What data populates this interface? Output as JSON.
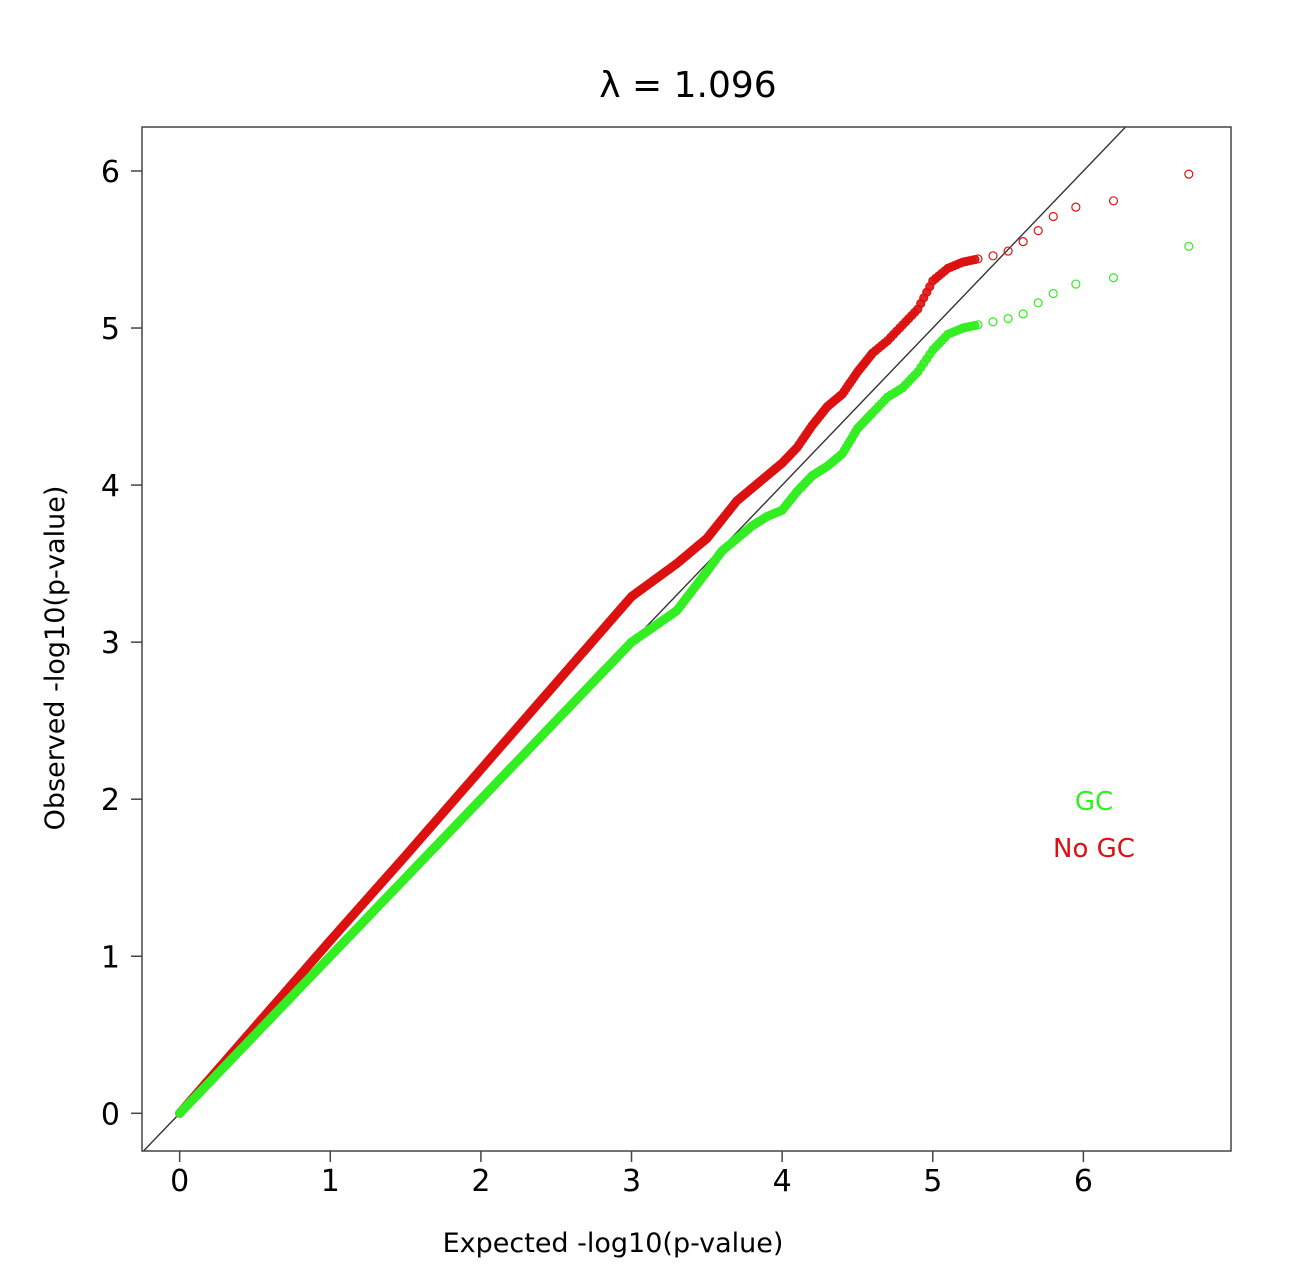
{
  "chart_data": {
    "type": "scatter",
    "title": "λ = 1.096",
    "xlabel": "Expected -log10(p-value)",
    "ylabel": "Observed -log10(p-value)",
    "xlim": [
      -0.25,
      6.98
    ],
    "ylim": [
      -0.24,
      6.28
    ],
    "x_ticks": [
      0,
      1,
      2,
      3,
      4,
      5,
      6
    ],
    "y_ticks": [
      0,
      1,
      2,
      3,
      4,
      5,
      6
    ],
    "x_tick_labels": [
      "0",
      "1",
      "2",
      "3",
      "4",
      "5",
      "6"
    ],
    "y_tick_labels": [
      "0",
      "1",
      "2",
      "3",
      "4",
      "5",
      "6"
    ],
    "reference_line": {
      "slope": 1,
      "intercept": 0,
      "color": "#333333"
    },
    "legend_position": "right",
    "legend": [
      {
        "label": "GC",
        "color": "#33ee22"
      },
      {
        "label": "No GC",
        "color": "#dd1111"
      }
    ],
    "series": [
      {
        "name": "No GC",
        "color": "#dd1111",
        "x": [
          0,
          0.3,
          0.6,
          1.0,
          1.5,
          2.0,
          2.5,
          3.0,
          3.3,
          3.5,
          3.6,
          3.7,
          3.8,
          3.9,
          4.0,
          4.1,
          4.2,
          4.3,
          4.4,
          4.5,
          4.6,
          4.7,
          4.8,
          4.9,
          5.0,
          5.1,
          5.2,
          5.3,
          5.4,
          5.5,
          5.6,
          5.7,
          5.8,
          5.95,
          6.2,
          6.7
        ],
        "y": [
          0,
          0.33,
          0.66,
          1.1,
          1.64,
          2.19,
          2.74,
          3.29,
          3.5,
          3.66,
          3.78,
          3.9,
          3.98,
          4.06,
          4.14,
          4.24,
          4.38,
          4.5,
          4.58,
          4.72,
          4.84,
          4.92,
          5.02,
          5.12,
          5.3,
          5.38,
          5.42,
          5.44,
          5.46,
          5.49,
          5.55,
          5.62,
          5.71,
          5.77,
          5.81,
          5.98
        ]
      },
      {
        "name": "GC",
        "color": "#33ee22",
        "x": [
          0,
          0.3,
          0.6,
          1.0,
          1.5,
          2.0,
          2.5,
          3.0,
          3.3,
          3.5,
          3.6,
          3.7,
          3.8,
          3.9,
          4.0,
          4.1,
          4.2,
          4.3,
          4.4,
          4.5,
          4.6,
          4.7,
          4.8,
          4.9,
          5.0,
          5.1,
          5.2,
          5.3,
          5.4,
          5.5,
          5.6,
          5.7,
          5.8,
          5.95,
          6.2,
          6.7
        ],
        "y": [
          0,
          0.3,
          0.6,
          1.0,
          1.5,
          2.0,
          2.5,
          3.0,
          3.2,
          3.45,
          3.58,
          3.66,
          3.74,
          3.8,
          3.84,
          3.96,
          4.06,
          4.12,
          4.2,
          4.36,
          4.46,
          4.56,
          4.62,
          4.72,
          4.86,
          4.96,
          5.0,
          5.02,
          5.04,
          5.06,
          5.09,
          5.16,
          5.22,
          5.28,
          5.32,
          5.52
        ]
      }
    ]
  }
}
